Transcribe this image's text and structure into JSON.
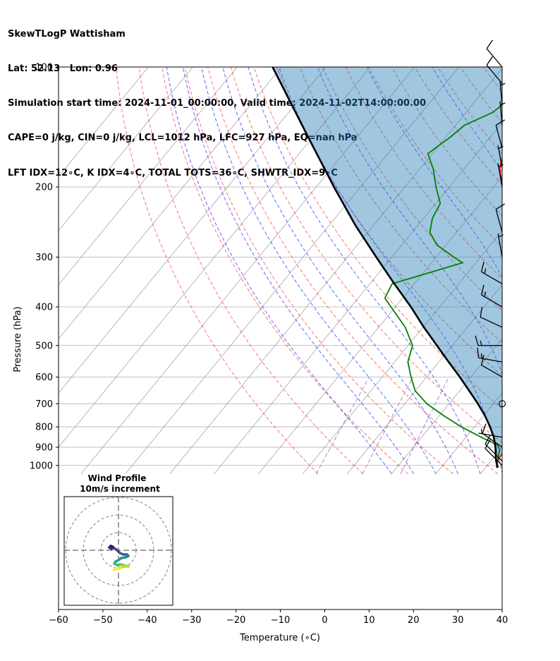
{
  "header": {
    "line1": "SkewTLogP Wattisham",
    "line2": "Lat: 52.13   Lon: 0.96",
    "line3": "Simulation start time: 2024-11-01_00:00:00, Valid time: 2024-11-02T14:00:00.00",
    "line4": "CAPE=0 j/kg, CIN=0 j/kg, LCL=1012 hPa, LFC=927 hPa, EQ=nan hPa",
    "line5": "LFT IDX=12∘C, K IDX=4∘C, TOTAL TOTS=36∘C, SHWTR_IDX=9∘C"
  },
  "hodograph": {
    "title_line1": "Wind Profile",
    "title_line2": "10m/s increment"
  },
  "chart_data": {
    "type": "line",
    "subtype": "skew-t log-p",
    "xlabel": "Temperature (∘C)",
    "ylabel": "Pressure (hPa)",
    "xlim": [
      -60,
      40
    ],
    "ylim": [
      1050,
      100
    ],
    "y_scale": "log",
    "x_ticks": [
      "−60",
      "−50",
      "−40",
      "−30",
      "−20",
      "−10",
      "0",
      "10",
      "20",
      "30",
      "40"
    ],
    "y_ticks": [
      "100",
      "200",
      "300",
      "400",
      "500",
      "600",
      "700",
      "800",
      "900",
      "1000"
    ],
    "colors": {
      "temperature": "#ff0000",
      "dewpoint": "#008000",
      "parcel": "#000000",
      "cape_fill": "#1f77b4",
      "dry_adiabats": "#ff0000",
      "moist_adiabats": "#0000ff",
      "mixing_ratio": "#9467bd",
      "isotherms": "#808080"
    },
    "series": [
      {
        "role": "temperature",
        "points": [
          [
            1013,
            12.5
          ],
          [
            975,
            11.5
          ],
          [
            935,
            11.2
          ],
          [
            915,
            12.5
          ],
          [
            888,
            14.5
          ],
          [
            850,
            15.5
          ],
          [
            800,
            15.5
          ],
          [
            750,
            15.5
          ],
          [
            700,
            15.0
          ],
          [
            650,
            14.0
          ],
          [
            600,
            11.0
          ],
          [
            500,
            2.0
          ],
          [
            400,
            -6.5
          ],
          [
            330,
            -13
          ],
          [
            300,
            -17
          ],
          [
            270,
            -23
          ],
          [
            250,
            -27
          ],
          [
            200,
            -38
          ],
          [
            180,
            -42
          ],
          [
            165,
            -44
          ],
          [
            150,
            -44
          ],
          [
            140,
            -44.5
          ],
          [
            130,
            -44
          ],
          [
            115,
            -40
          ],
          [
            110,
            -40
          ],
          [
            100,
            -39
          ]
        ]
      },
      {
        "role": "dewpoint",
        "points": [
          [
            1013,
            12.5
          ],
          [
            975,
            11.5
          ],
          [
            935,
            10.5
          ],
          [
            915,
            10
          ],
          [
            888,
            8.5
          ],
          [
            850,
            3.5
          ],
          [
            800,
            -3
          ],
          [
            750,
            -9
          ],
          [
            700,
            -15
          ],
          [
            650,
            -20
          ],
          [
            600,
            -23.5
          ],
          [
            550,
            -27
          ],
          [
            500,
            -29
          ],
          [
            450,
            -34
          ],
          [
            400,
            -41
          ],
          [
            380,
            -44
          ],
          [
            350,
            -45
          ],
          [
            310,
            -33
          ],
          [
            300,
            -36
          ],
          [
            280,
            -42
          ],
          [
            260,
            -46
          ],
          [
            240,
            -48
          ],
          [
            220,
            -49
          ],
          [
            200,
            -53
          ],
          [
            180,
            -57
          ],
          [
            165,
            -61
          ],
          [
            150,
            -59
          ],
          [
            140,
            -58
          ],
          [
            130,
            -54
          ],
          [
            115,
            -52
          ],
          [
            105,
            -51
          ],
          [
            100,
            -49
          ]
        ]
      },
      {
        "role": "parcel",
        "points": [
          [
            1013,
            12.8
          ],
          [
            975,
            11.2
          ],
          [
            950,
            10.3
          ],
          [
            900,
            8.5
          ],
          [
            850,
            6.3
          ],
          [
            800,
            3.5
          ],
          [
            750,
            0.3
          ],
          [
            700,
            -3.5
          ],
          [
            650,
            -7.8
          ],
          [
            600,
            -12.5
          ],
          [
            550,
            -17.8
          ],
          [
            500,
            -23.5
          ],
          [
            450,
            -29.8
          ],
          [
            400,
            -36.5
          ],
          [
            350,
            -44.5
          ],
          [
            300,
            -53.5
          ],
          [
            250,
            -64
          ],
          [
            200,
            -76
          ],
          [
            150,
            -91
          ],
          [
            100,
            -112
          ]
        ]
      }
    ],
    "wind_barbs": [
      {
        "p": 1000,
        "speed_kt": 10,
        "dir": 315
      },
      {
        "p": 975,
        "speed_kt": 10,
        "dir": 315
      },
      {
        "p": 900,
        "speed_kt": 10,
        "dir": 305
      },
      {
        "p": 850,
        "speed_kt": 5,
        "dir": 280
      },
      {
        "p": 700,
        "speed_kt": 0,
        "dir": 0
      },
      {
        "p": 600,
        "speed_kt": 10,
        "dir": 300
      },
      {
        "p": 550,
        "speed_kt": 15,
        "dir": 280
      },
      {
        "p": 500,
        "speed_kt": 15,
        "dir": 270
      },
      {
        "p": 450,
        "speed_kt": 10,
        "dir": 295
      },
      {
        "p": 400,
        "speed_kt": 15,
        "dir": 300
      },
      {
        "p": 350,
        "speed_kt": 15,
        "dir": 300
      },
      {
        "p": 300,
        "speed_kt": 5,
        "dir": 350
      },
      {
        "p": 260,
        "speed_kt": 10,
        "dir": 345
      },
      {
        "p": 200,
        "speed_kt": 5,
        "dir": 350
      },
      {
        "p": 180,
        "speed_kt": 5,
        "dir": 350
      },
      {
        "p": 160,
        "speed_kt": 10,
        "dir": 345
      },
      {
        "p": 140,
        "speed_kt": 5,
        "dir": 355
      },
      {
        "p": 125,
        "speed_kt": 5,
        "dir": 355
      },
      {
        "p": 110,
        "speed_kt": 10,
        "dir": 320
      },
      {
        "p": 100,
        "speed_kt": 10,
        "dir": 320
      }
    ],
    "grid": true,
    "legend": "none"
  }
}
